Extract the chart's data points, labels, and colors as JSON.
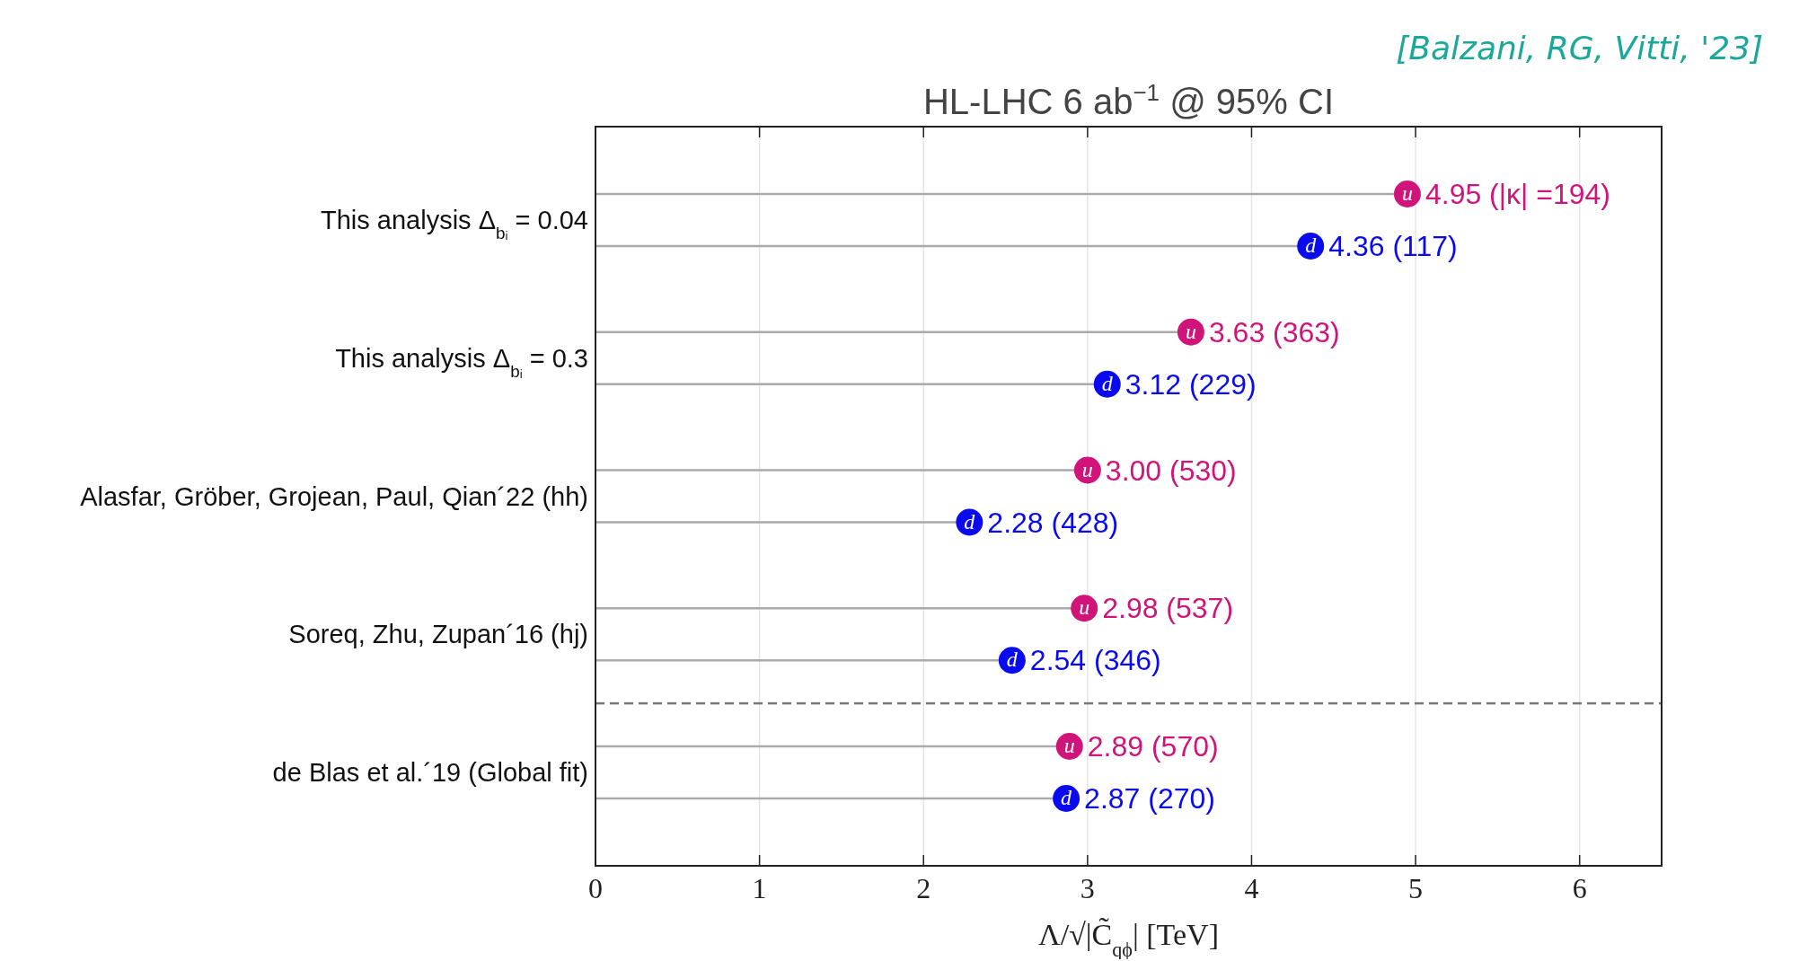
{
  "chart_data": {
    "type": "lollipop",
    "orientation": "horizontal",
    "title": "HL-LHC 6 ab$^{−1}$ @ 95% CI",
    "xlabel": "Λ/√|C̃$_{qϕ}$| [TeV]",
    "annotations": [
      "[Balzani, RG, Vitti, '23]"
    ],
    "categories": [
      "This analysis Δ$_{bᵢ}$ = 0.04",
      "This analysis Δ$_{bᵢ}$ = 0.3",
      "Alasfar, Gröber, Grojean, Paul, Qian´22 (hh)",
      "Soreq, Zhu, Zupan´16 (hj)",
      "de Blas et al.´19 (Global fit)"
    ],
    "series": [
      {
        "name": "u",
        "color": "#d0147a",
        "values": [
          4.95,
          3.63,
          3.0,
          2.98,
          2.89
        ],
        "value_labels": [
          "4.95 (|κ| =194)",
          "3.63 (363)",
          "3.00 (530)",
          "2.98 (537)",
          "2.89 (570)"
        ]
      },
      {
        "name": "d",
        "color": "#0a0aef",
        "values": [
          4.36,
          3.12,
          2.28,
          2.54,
          2.87
        ],
        "value_labels": [
          "4.36 (117)",
          "3.12 (229)",
          "2.28 (428)",
          "2.54 (346)",
          "2.87 (270)"
        ]
      }
    ],
    "xlim": [
      0,
      6.5
    ],
    "xticks": [
      0,
      1,
      2,
      3,
      4,
      5,
      6
    ],
    "grid": "x",
    "marker": "circle"
  }
}
